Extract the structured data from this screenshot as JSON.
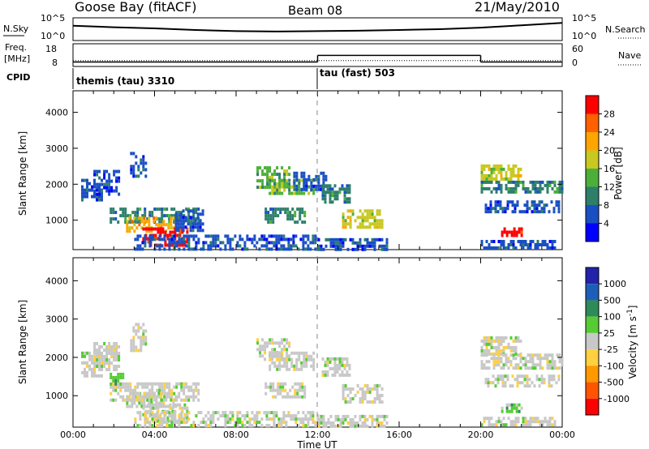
{
  "header": {
    "station": "Goose Bay (fitACF)",
    "beam": "Beam 08",
    "date": "21/May/2010"
  },
  "colors": {
    "power": [
      "#0000ff",
      "#1a4fc4",
      "#2e7f6a",
      "#4caf3a",
      "#c8c820",
      "#ffa500",
      "#ff6000",
      "#ff0000"
    ],
    "velocity": [
      "#2222aa",
      "#1d5fb8",
      "#2e8b57",
      "#55cc33",
      "#c8c8c8",
      "#ffd040",
      "#ff9900",
      "#ff5500",
      "#ff0000"
    ],
    "ground_scatter": "#c8c8c8"
  },
  "chart_data": [
    {
      "type": "line",
      "panel": "noise",
      "left_label": "N.Sky",
      "right_label": "N.Search",
      "left_ticks": [
        "10^5",
        "10^0"
      ],
      "right_ticks": [
        "10^5",
        "10^0"
      ],
      "x": [
        0,
        2,
        4,
        6,
        8,
        10,
        12,
        14,
        16,
        18,
        20,
        22,
        24
      ],
      "n_sky_log10": [
        3.4,
        3.0,
        2.7,
        2.3,
        2.0,
        1.9,
        2.0,
        2.1,
        2.3,
        2.5,
        2.9,
        3.5,
        4.1
      ]
    },
    {
      "type": "line",
      "panel": "frequency",
      "left_label": "Freq.",
      "left_unit": "[MHz]",
      "right_label": "Nave",
      "left_ticks": [
        "18",
        "8"
      ],
      "right_ticks": [
        "60",
        "0"
      ],
      "segments": [
        {
          "x": [
            0,
            12
          ],
          "freq_mhz": 10.5
        },
        {
          "x": [
            12,
            20
          ],
          "freq_mhz": 15.0
        },
        {
          "x": [
            20,
            24
          ],
          "freq_mhz": 10.5
        }
      ],
      "nave": 21
    },
    {
      "type": "table",
      "panel": "cpid",
      "label": "CPID",
      "entries": [
        {
          "start_hour": 0,
          "text": "themis (tau) 3310"
        },
        {
          "start_hour": 12,
          "text": "tau (fast) 503"
        }
      ]
    },
    {
      "type": "heatmap",
      "panel": "power",
      "ylabel": "Slant Range [km]",
      "yticks": [
        "1000",
        "2000",
        "3000",
        "4000"
      ],
      "ylim": [
        180,
        4600
      ],
      "xlim": [
        0,
        24
      ],
      "colorbar_label": "Power [dB]",
      "colorbar_ticks": [
        "4",
        "8",
        "12",
        "16",
        "20",
        "24",
        "28"
      ],
      "colorbar_range": [
        0,
        32
      ],
      "regions": [
        {
          "x0": 0.4,
          "x1": 1.4,
          "y0": 1550,
          "y1": 2150,
          "level": 1
        },
        {
          "x0": 1.0,
          "x1": 2.2,
          "y0": 1700,
          "y1": 2400,
          "level": 1
        },
        {
          "x0": 2.8,
          "x1": 3.6,
          "y0": 2200,
          "y1": 2900,
          "level": 1
        },
        {
          "x0": 1.8,
          "x1": 6.2,
          "y0": 900,
          "y1": 1350,
          "level": 2
        },
        {
          "x0": 2.6,
          "x1": 5.0,
          "y0": 700,
          "y1": 1100,
          "level": 5
        },
        {
          "x0": 3.4,
          "x1": 5.6,
          "y0": 300,
          "y1": 800,
          "level": 7
        },
        {
          "x0": 5.0,
          "x1": 6.4,
          "y0": 750,
          "y1": 1300,
          "level": 1
        },
        {
          "x0": 3.0,
          "x1": 12.0,
          "y0": 200,
          "y1": 600,
          "level": 1
        },
        {
          "x0": 9.0,
          "x1": 10.6,
          "y0": 1950,
          "y1": 2500,
          "level": 3
        },
        {
          "x0": 9.6,
          "x1": 11.8,
          "y0": 1700,
          "y1": 2150,
          "level": 3
        },
        {
          "x0": 9.4,
          "x1": 11.4,
          "y0": 950,
          "y1": 1350,
          "level": 2
        },
        {
          "x0": 10.8,
          "x1": 12.4,
          "y0": 1850,
          "y1": 2350,
          "level": 1
        },
        {
          "x0": 12.2,
          "x1": 13.6,
          "y0": 1500,
          "y1": 2000,
          "level": 2
        },
        {
          "x0": 13.2,
          "x1": 15.2,
          "y0": 800,
          "y1": 1300,
          "level": 4
        },
        {
          "x0": 12.0,
          "x1": 15.4,
          "y0": 200,
          "y1": 500,
          "level": 1
        },
        {
          "x0": 20.0,
          "x1": 22.0,
          "y0": 2100,
          "y1": 2550,
          "level": 4
        },
        {
          "x0": 20.0,
          "x1": 24.0,
          "y0": 1750,
          "y1": 2100,
          "level": 2
        },
        {
          "x0": 20.2,
          "x1": 23.8,
          "y0": 1250,
          "y1": 1550,
          "level": 1
        },
        {
          "x0": 21.0,
          "x1": 22.0,
          "y0": 600,
          "y1": 800,
          "level": 7
        },
        {
          "x0": 20.0,
          "x1": 23.6,
          "y0": 200,
          "y1": 450,
          "level": 1
        }
      ]
    },
    {
      "type": "heatmap",
      "panel": "velocity",
      "xlabel": "Time UT",
      "ylabel": "Slant Range [km]",
      "xticks": [
        "00:00",
        "04:00",
        "08:00",
        "12:00",
        "16:00",
        "20:00",
        "00:00"
      ],
      "yticks": [
        "1000",
        "2000",
        "3000",
        "4000"
      ],
      "ylim": [
        180,
        4600
      ],
      "xlim": [
        0,
        24
      ],
      "colorbar_label": "Velocity [m s^-1]",
      "colorbar_label_main": "Velocity [m s",
      "colorbar_label_sup": "-1",
      "colorbar_label_end": "]",
      "colorbar_ticks": [
        "1000",
        "500",
        "100",
        "25",
        "-25",
        "-100",
        "-500",
        "-1000"
      ],
      "regions": [
        {
          "x0": 0.4,
          "x1": 1.4,
          "y0": 1550,
          "y1": 2150,
          "level": 4
        },
        {
          "x0": 1.0,
          "x1": 2.2,
          "y0": 1700,
          "y1": 2400,
          "level": 4
        },
        {
          "x0": 2.8,
          "x1": 3.6,
          "y0": 2200,
          "y1": 2900,
          "level": 4
        },
        {
          "x0": 1.8,
          "x1": 6.2,
          "y0": 900,
          "y1": 1350,
          "level": 4
        },
        {
          "x0": 2.6,
          "x1": 5.0,
          "y0": 700,
          "y1": 1100,
          "level": 4
        },
        {
          "x0": 3.4,
          "x1": 5.6,
          "y0": 300,
          "y1": 800,
          "level": 4
        },
        {
          "x0": 1.8,
          "x1": 2.4,
          "y0": 1300,
          "y1": 1600,
          "level": 3
        },
        {
          "x0": 3.0,
          "x1": 12.0,
          "y0": 200,
          "y1": 600,
          "level": 4
        },
        {
          "x0": 9.0,
          "x1": 10.6,
          "y0": 1950,
          "y1": 2500,
          "level": 4
        },
        {
          "x0": 9.6,
          "x1": 11.8,
          "y0": 1700,
          "y1": 2150,
          "level": 4
        },
        {
          "x0": 9.4,
          "x1": 11.4,
          "y0": 950,
          "y1": 1350,
          "level": 4
        },
        {
          "x0": 12.2,
          "x1": 13.6,
          "y0": 1500,
          "y1": 2000,
          "level": 4
        },
        {
          "x0": 13.2,
          "x1": 15.2,
          "y0": 800,
          "y1": 1300,
          "level": 4
        },
        {
          "x0": 12.0,
          "x1": 15.4,
          "y0": 200,
          "y1": 500,
          "level": 4
        },
        {
          "x0": 20.0,
          "x1": 22.0,
          "y0": 2100,
          "y1": 2550,
          "level": 4
        },
        {
          "x0": 20.0,
          "x1": 24.0,
          "y0": 1750,
          "y1": 2100,
          "level": 4
        },
        {
          "x0": 20.2,
          "x1": 23.8,
          "y0": 1250,
          "y1": 1550,
          "level": 4
        },
        {
          "x0": 21.0,
          "x1": 22.0,
          "y0": 600,
          "y1": 800,
          "level": 3
        },
        {
          "x0": 20.0,
          "x1": 23.6,
          "y0": 200,
          "y1": 450,
          "level": 4
        }
      ]
    }
  ]
}
